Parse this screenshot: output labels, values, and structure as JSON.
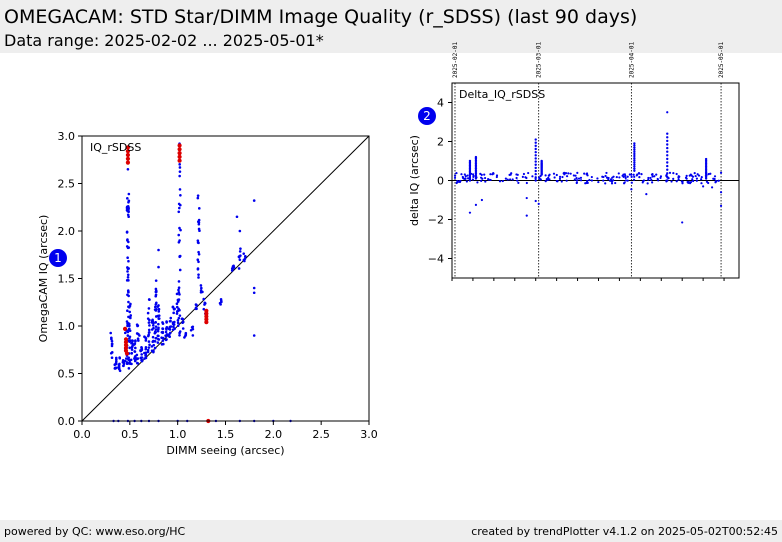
{
  "header": {
    "title": "OMEGACAM: STD Star/DIMM Image Quality (r_SDSS) (last 90 days)",
    "subtitle": "Data range: 2025-02-02 ... 2025-05-01*"
  },
  "footer": {
    "left": "powered by QC: www.eso.org/HC",
    "right": "created by trendPlotter v4.1.2 on 2025-05-02T00:52:45"
  },
  "badges": [
    "1",
    "2"
  ],
  "colors": {
    "primary": "#0000ee",
    "highlight": "#dd0000",
    "band": "#eeeeee"
  },
  "chart_data": [
    {
      "type": "scatter",
      "label": "IQ_rSDSS",
      "xlabel": "DIMM seeing (arcsec)",
      "ylabel": "OmegaCAM IQ (arcsec)",
      "xlim": [
        0,
        3
      ],
      "ylim": [
        0,
        3
      ],
      "xticks": [
        "0.0",
        "0.5",
        "1.0",
        "1.5",
        "2.0",
        "2.5",
        "3.0"
      ],
      "yticks": [
        "0.0",
        "0.5",
        "1.0",
        "1.5",
        "2.0",
        "2.5",
        "3.0"
      ],
      "reference_line": "y = x",
      "grid": false,
      "clusters": [
        {
          "x": 0.31,
          "y": [
            0.65,
            0.95
          ],
          "n": 10
        },
        {
          "x": 0.35,
          "y": [
            0.5,
            0.68
          ],
          "n": 10
        },
        {
          "x": 0.39,
          "y": [
            0.52,
            0.68
          ],
          "n": 10
        },
        {
          "x": 0.43,
          "y": [
            0.55,
            0.68
          ],
          "n": 8
        },
        {
          "x": 0.46,
          "y": [
            0.6,
            1.0
          ],
          "n": 10
        },
        {
          "x": 0.48,
          "y": [
            0.6,
            2.4
          ],
          "n": 60
        },
        {
          "x": 0.5,
          "y": [
            0.55,
            1.25
          ],
          "n": 25
        },
        {
          "x": 0.52,
          "y": [
            0.58,
            0.85
          ],
          "n": 12
        },
        {
          "x": 0.55,
          "y": [
            0.6,
            0.9
          ],
          "n": 12
        },
        {
          "x": 0.58,
          "y": [
            0.6,
            1.05
          ],
          "n": 12
        },
        {
          "x": 0.62,
          "y": [
            0.62,
            0.82
          ],
          "n": 12
        },
        {
          "x": 0.66,
          "y": [
            0.65,
            0.9
          ],
          "n": 12
        },
        {
          "x": 0.7,
          "y": [
            0.7,
            1.3
          ],
          "n": 18
        },
        {
          "x": 0.74,
          "y": [
            0.72,
            1.1
          ],
          "n": 18
        },
        {
          "x": 0.77,
          "y": [
            0.75,
            1.5
          ],
          "n": 25
        },
        {
          "x": 0.8,
          "y": [
            0.8,
            1.28
          ],
          "n": 18
        },
        {
          "x": 0.84,
          "y": [
            0.8,
            1.05
          ],
          "n": 12
        },
        {
          "x": 0.88,
          "y": [
            0.85,
            1.05
          ],
          "n": 12
        },
        {
          "x": 0.92,
          "y": [
            0.8,
            1.1
          ],
          "n": 12
        },
        {
          "x": 0.96,
          "y": [
            0.95,
            1.25
          ],
          "n": 12
        },
        {
          "x": 1.0,
          "y": [
            1.0,
            1.38
          ],
          "n": 14
        },
        {
          "x": 1.02,
          "y": [
            0.9,
            2.95
          ],
          "n": 30
        },
        {
          "x": 1.05,
          "y": [
            0.95,
            1.08
          ],
          "n": 6
        },
        {
          "x": 1.08,
          "y": [
            0.85,
            0.95
          ],
          "n": 5
        },
        {
          "x": 1.15,
          "y": [
            0.9,
            1.0
          ],
          "n": 5
        },
        {
          "x": 1.2,
          "y": [
            1.15,
            1.25
          ],
          "n": 5
        },
        {
          "x": 1.22,
          "y": [
            1.5,
            2.4
          ],
          "n": 20
        },
        {
          "x": 1.25,
          "y": [
            1.35,
            1.5
          ],
          "n": 5
        },
        {
          "x": 1.28,
          "y": [
            1.1,
            1.3
          ],
          "n": 6
        },
        {
          "x": 1.45,
          "y": [
            1.2,
            1.3
          ],
          "n": 5
        },
        {
          "x": 1.58,
          "y": [
            1.55,
            1.65
          ],
          "n": 6
        },
        {
          "x": 1.65,
          "y": [
            1.6,
            1.85
          ],
          "n": 8
        },
        {
          "x": 1.7,
          "y": [
            1.68,
            1.82
          ],
          "n": 6
        }
      ],
      "outliers": [
        {
          "x": 0.58,
          "y": 1.0
        },
        {
          "x": 0.6,
          "y": 0.9
        },
        {
          "x": 0.8,
          "y": 1.8
        },
        {
          "x": 0.8,
          "y": 1.62
        },
        {
          "x": 1.02,
          "y": 1.9
        },
        {
          "x": 1.62,
          "y": 2.15
        },
        {
          "x": 1.65,
          "y": 2.0
        },
        {
          "x": 1.8,
          "y": 2.32
        },
        {
          "x": 1.8,
          "y": 1.4
        },
        {
          "x": 1.8,
          "y": 1.35
        },
        {
          "x": 1.8,
          "y": 0.9
        },
        {
          "x": 0.48,
          "y": 2.65
        }
      ],
      "bottom_points": [
        {
          "x": 0.33,
          "y": 0.0
        },
        {
          "x": 0.38,
          "y": 0.0
        },
        {
          "x": 0.48,
          "y": 0.0
        },
        {
          "x": 0.55,
          "y": 0.0
        },
        {
          "x": 0.62,
          "y": 0.0
        },
        {
          "x": 0.7,
          "y": 0.0
        },
        {
          "x": 0.8,
          "y": 0.0
        },
        {
          "x": 1.0,
          "y": 0.0
        },
        {
          "x": 1.1,
          "y": 0.0
        },
        {
          "x": 1.4,
          "y": 0.0
        },
        {
          "x": 1.65,
          "y": 0.0
        },
        {
          "x": 1.8,
          "y": 0.0
        },
        {
          "x": 2.0,
          "y": 0.0
        },
        {
          "x": 2.18,
          "y": 0.0
        }
      ],
      "highlighted": [
        {
          "x": 0.48,
          "y": 2.88
        },
        {
          "x": 0.48,
          "y": 2.84
        },
        {
          "x": 0.48,
          "y": 2.8
        },
        {
          "x": 0.48,
          "y": 2.76
        },
        {
          "x": 0.48,
          "y": 2.72
        },
        {
          "x": 1.02,
          "y": 2.9
        },
        {
          "x": 1.02,
          "y": 2.86
        },
        {
          "x": 1.02,
          "y": 2.82
        },
        {
          "x": 1.02,
          "y": 2.78
        },
        {
          "x": 1.02,
          "y": 2.74
        },
        {
          "x": 0.45,
          "y": 0.97
        },
        {
          "x": 0.46,
          "y": 0.86
        },
        {
          "x": 0.46,
          "y": 0.83
        },
        {
          "x": 0.46,
          "y": 0.8
        },
        {
          "x": 0.46,
          "y": 0.77
        },
        {
          "x": 0.46,
          "y": 0.74
        },
        {
          "x": 0.47,
          "y": 0.71
        },
        {
          "x": 1.3,
          "y": 1.16
        },
        {
          "x": 1.3,
          "y": 1.13
        },
        {
          "x": 1.3,
          "y": 1.1
        },
        {
          "x": 1.3,
          "y": 1.07
        },
        {
          "x": 1.3,
          "y": 1.04
        },
        {
          "x": 1.32,
          "y": 0.0
        }
      ]
    },
    {
      "type": "scatter",
      "label": "Delta_IQ_rSDSS",
      "xlabel": "",
      "ylabel": "delta IQ (arcsec)",
      "xlim": [
        "2025-01-31",
        "2025-05-07"
      ],
      "ylim": [
        -5,
        5
      ],
      "yticks": [
        "4",
        "2",
        "0",
        "−2",
        "−4"
      ],
      "date_markers": [
        "2025-02-01",
        "2025-03-01",
        "2025-04-01",
        "2025-05-01"
      ],
      "zero_line": true,
      "series_band": {
        "from": "2025-02-01",
        "to": "2025-05-01",
        "value_range": [
          -0.15,
          0.4
        ],
        "count": 240
      },
      "spikes": [
        {
          "date": "2025-02-06",
          "y": [
            0.0,
            1.0
          ]
        },
        {
          "date": "2025-02-08",
          "y": [
            0.1,
            1.2
          ]
        },
        {
          "date": "2025-02-28",
          "y": [
            0.0,
            2.1
          ]
        },
        {
          "date": "2025-03-02",
          "y": [
            0.3,
            1.0
          ]
        },
        {
          "date": "2025-04-02",
          "y": [
            0.5,
            1.9
          ]
        },
        {
          "date": "2025-04-13",
          "y": [
            0.0,
            2.4
          ]
        },
        {
          "date": "2025-04-26",
          "y": [
            0.1,
            1.1
          ]
        }
      ],
      "outliers": [
        {
          "date": "2025-02-06",
          "y": -1.65
        },
        {
          "date": "2025-02-08",
          "y": -1.25
        },
        {
          "date": "2025-02-10",
          "y": -1.0
        },
        {
          "date": "2025-02-25",
          "y": -1.8
        },
        {
          "date": "2025-02-25",
          "y": -0.9
        },
        {
          "date": "2025-02-28",
          "y": -1.05
        },
        {
          "date": "2025-03-01",
          "y": -1.2
        },
        {
          "date": "2025-04-01",
          "y": -0.45
        },
        {
          "date": "2025-04-06",
          "y": -0.7
        },
        {
          "date": "2025-04-13",
          "y": 3.5
        },
        {
          "date": "2025-04-18",
          "y": -2.15
        },
        {
          "date": "2025-04-25",
          "y": -0.3
        },
        {
          "date": "2025-04-28",
          "y": -0.35
        },
        {
          "date": "2025-05-01",
          "y": -0.6
        },
        {
          "date": "2025-05-01",
          "y": -1.3
        }
      ]
    }
  ]
}
